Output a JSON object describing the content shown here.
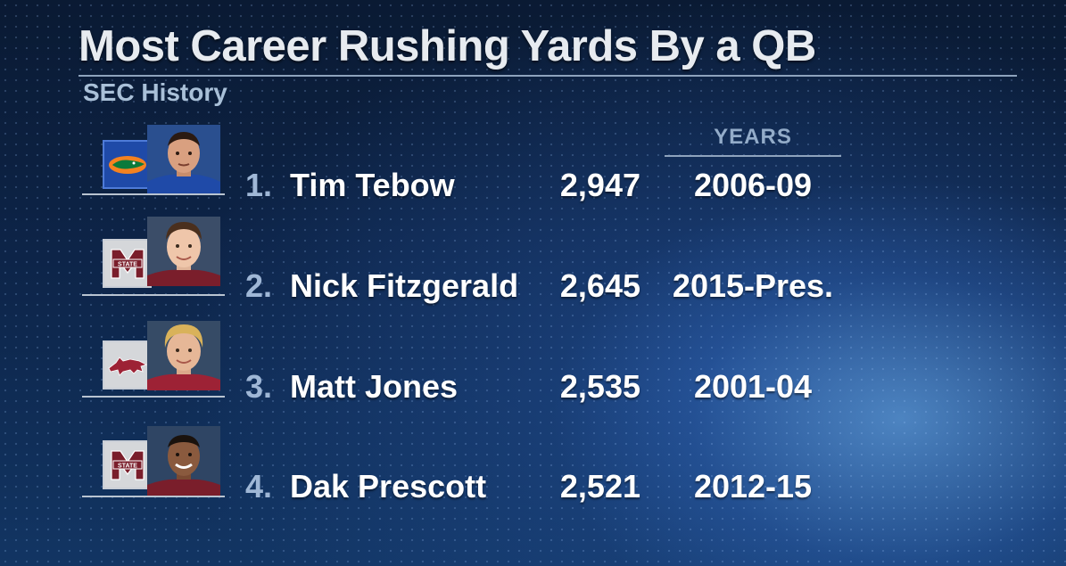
{
  "header": {
    "title": "Most Career Rushing Yards By a QB",
    "subtitle": "SEC History"
  },
  "columns": {
    "years_header": "YEARS"
  },
  "rows": [
    {
      "rank": "1.",
      "name": "Tim Tebow",
      "yards": "2,947",
      "years": "2006-09",
      "team_logo": "florida-gator-logo",
      "jersey_color": "#1f4aa8"
    },
    {
      "rank": "2.",
      "name": "Nick Fitzgerald",
      "yards": "2,645",
      "years": "2015-Pres.",
      "team_logo": "mississippi-state-logo",
      "jersey_color": "#7a1e2b"
    },
    {
      "rank": "3.",
      "name": "Matt Jones",
      "yards": "2,535",
      "years": "2001-04",
      "team_logo": "arkansas-razorback-logo",
      "jersey_color": "#9d2235"
    },
    {
      "rank": "4.",
      "name": "Dak Prescott",
      "yards": "2,521",
      "years": "2012-15",
      "team_logo": "mississippi-state-logo",
      "jersey_color": "#7a1e2b"
    }
  ],
  "colors": {
    "title": "#e7ebf0",
    "subtitle": "#a9c0d8",
    "rank": "#9fb7d6",
    "value": "#ffffff",
    "accent_glow": "#78beff"
  }
}
